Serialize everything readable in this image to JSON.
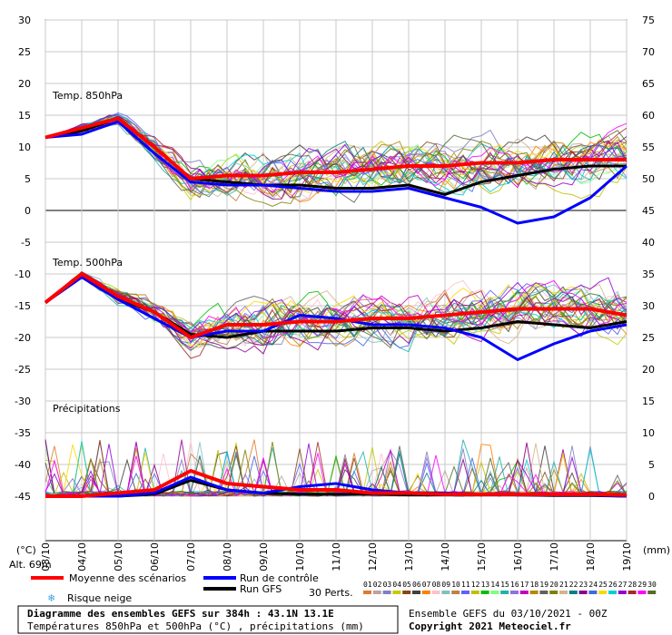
{
  "chart_data": {
    "type": "line",
    "title": "Diagramme des ensembles GEFS sur 384h : 43.1N 13.1E",
    "subtitle": "Températures 850hPa et 500hPa (°C) , précipitations (mm)",
    "panels": [
      "Temp. 850hPa",
      "Temp. 500hPa",
      "Précipitations"
    ],
    "x_labels": [
      "03/10",
      "04/10",
      "05/10",
      "06/10",
      "07/10",
      "08/10",
      "09/10",
      "10/10",
      "11/10",
      "12/10",
      "13/10",
      "14/10",
      "15/10",
      "16/10",
      "17/10",
      "18/10",
      "19/10"
    ],
    "left_axis_ticks": [
      30,
      25,
      20,
      15,
      10,
      5,
      0,
      -5,
      -10,
      -15,
      -20,
      -25,
      -30,
      -35,
      -40,
      -45
    ],
    "right_axis_ticks": [
      75,
      70,
      65,
      60,
      55,
      50,
      45,
      40,
      35,
      30,
      25,
      20,
      15,
      10,
      5,
      0
    ],
    "left_unit": "(°C)",
    "right_unit": "(mm)",
    "altitude": "Alt. 69m",
    "series": [
      {
        "name": "Moyenne des scénarios",
        "color": "#ff0000",
        "t850": [
          11.5,
          13,
          14.5,
          10,
          5,
          5.5,
          5.5,
          6,
          6,
          6.5,
          7,
          7,
          7.5,
          7.5,
          8,
          8,
          8
        ],
        "t500": [
          -14.5,
          -10,
          -13.5,
          -16,
          -20,
          -18,
          -18,
          -17.5,
          -17.5,
          -17,
          -17,
          -16.5,
          -16,
          -15.5,
          -15.5,
          -15.5,
          -16.5
        ],
        "precip": [
          0,
          0,
          0.5,
          1,
          4,
          2,
          1.5,
          1,
          1,
          0.5,
          0.5,
          0.3,
          0.3,
          0.3,
          0.3,
          0.3,
          0.2
        ]
      },
      {
        "name": "Run de contrôle",
        "color": "#0000ff",
        "t850": [
          11.5,
          12,
          14,
          9,
          4.5,
          4,
          4,
          3.5,
          3,
          3,
          3.5,
          2,
          0.5,
          -2,
          -1,
          2,
          7
        ],
        "t500": [
          -14.5,
          -10.5,
          -14,
          -17,
          -20,
          -19,
          -19,
          -16.5,
          -17,
          -18,
          -18,
          -18.5,
          -20,
          -23.5,
          -21,
          -19,
          -18
        ],
        "precip": [
          0,
          0,
          0,
          0.5,
          3,
          1,
          0.5,
          1.5,
          2,
          1,
          0.5,
          0.5,
          0.3,
          0.2,
          0.2,
          0.2,
          0
        ]
      },
      {
        "name": "Run GFS",
        "color": "#000000",
        "t850": [
          11.5,
          12.5,
          14.5,
          10,
          5,
          4.5,
          4,
          4,
          3.5,
          3.5,
          4,
          2.5,
          4.5,
          5.5,
          6.5,
          7,
          7
        ],
        "t500": [
          -14.5,
          -10.5,
          -14,
          -16,
          -19.5,
          -20,
          -19,
          -19,
          -19,
          -18.5,
          -18.5,
          -19,
          -18.5,
          -17.5,
          -18,
          -18.5,
          -17.5
        ],
        "precip": [
          0,
          0,
          0,
          0.3,
          2.5,
          1,
          0.5,
          0.3,
          0.3,
          0.3,
          0.2,
          0.2,
          0.2,
          0.2,
          0.1,
          0.1,
          0
        ]
      }
    ],
    "perturbations_label": "30 Perts.",
    "perturbation_numbers": [
      "01",
      "02",
      "03",
      "04",
      "05",
      "06",
      "07",
      "08",
      "09",
      "10",
      "11",
      "12",
      "13",
      "14",
      "15",
      "16",
      "17",
      "18",
      "19",
      "20",
      "21",
      "22",
      "23",
      "24",
      "25",
      "26",
      "27",
      "28",
      "29",
      "30"
    ],
    "perturbation_colors": [
      "#e07a30",
      "#c0a0a0",
      "#8080c0",
      "#c8c800",
      "#8b4513",
      "#404040",
      "#ff8000",
      "#ffc0cb",
      "#80c0c0",
      "#c08040",
      "#6060ff",
      "#c0c000",
      "#00c000",
      "#80ff80",
      "#20b2aa",
      "#9370db",
      "#c000c0",
      "#b8860b",
      "#606060",
      "#808000",
      "#d2b48c",
      "#008080",
      "#8b008b",
      "#4169e1",
      "#ffd700",
      "#00ced1",
      "#9400d3",
      "#a52a2a",
      "#ff00ff",
      "#556b2f"
    ]
  },
  "legend": {
    "mean": "Moyenne des scénarios",
    "control": "Run de contrôle",
    "gfs": "Run GFS",
    "snow": "Risque neige",
    "perts": "30 Perts."
  },
  "footer": {
    "title": "Diagramme des ensembles GEFS sur 384h : 43.1N 13.1E",
    "subtitle": "Températures 850hPa et 500hPa (°C) , précipitations (mm)",
    "run": "Ensemble GEFS du 03/10/2021 - 00Z",
    "copyright": "Copyright 2021 Meteociel.fr"
  }
}
